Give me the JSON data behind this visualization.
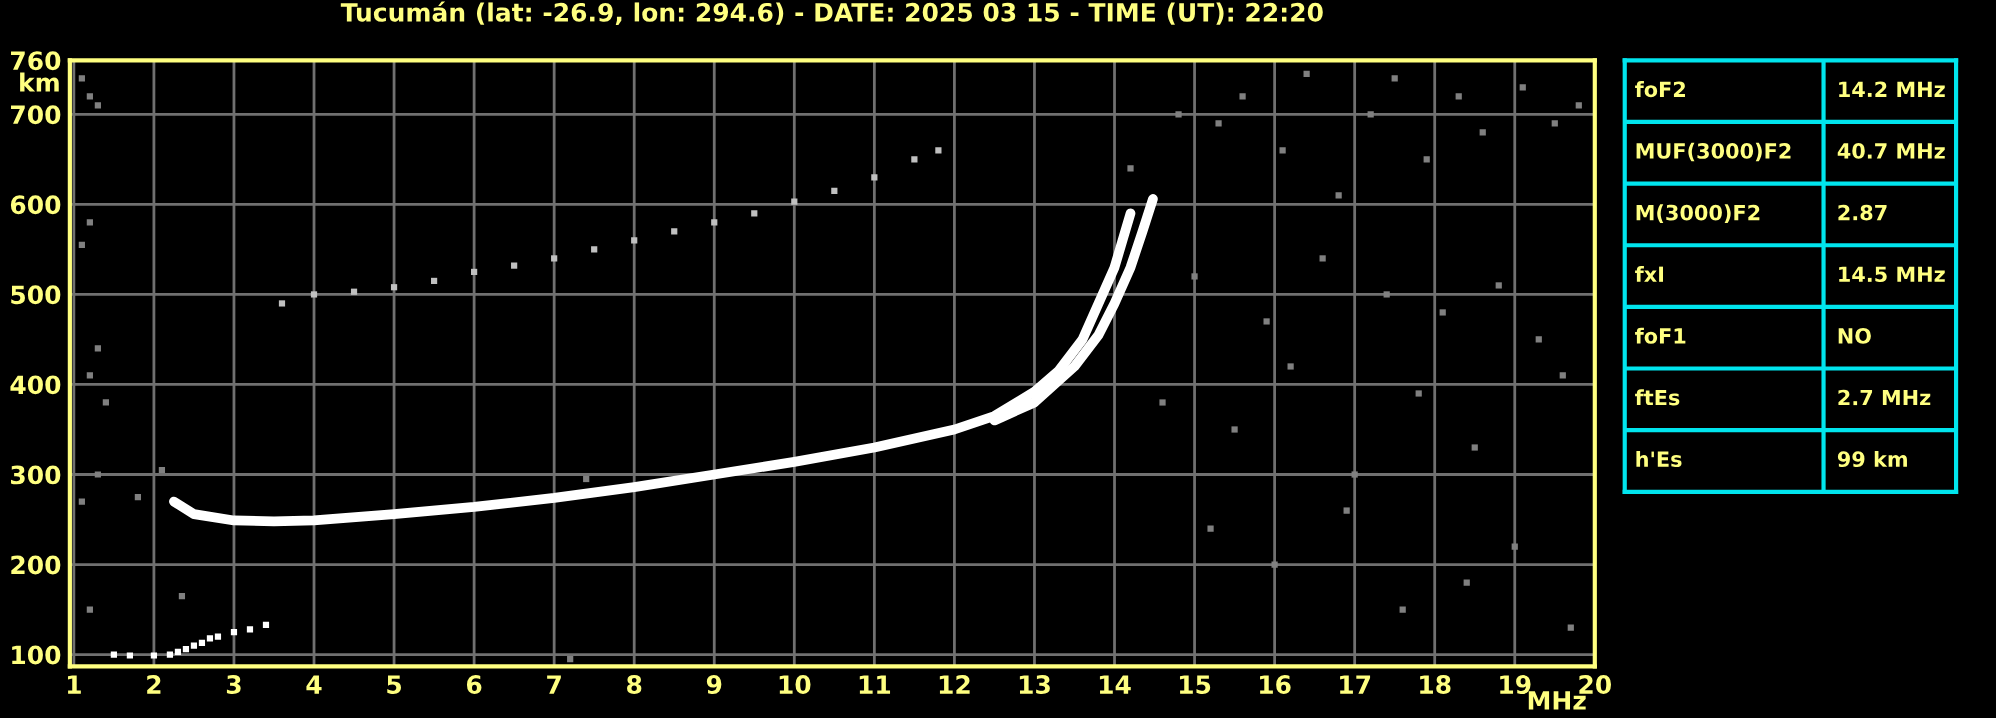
{
  "chart_data": [
    {
      "type": "scatter",
      "title": "Tucumán (lat: -26.9, lon: 294.6) - DATE: 2025 03 15 - TIME (UT): 22:20",
      "xlabel": "MHz",
      "ylabel": "km",
      "xlim": [
        0.95,
        20
      ],
      "ylim": [
        87,
        760
      ],
      "xticks": [
        1,
        2,
        3,
        4,
        5,
        6,
        7,
        8,
        9,
        10,
        11,
        12,
        13,
        14,
        15,
        16,
        17,
        18,
        19,
        20
      ],
      "yticks": [
        100,
        200,
        300,
        400,
        500,
        600,
        700,
        760
      ],
      "grid": true,
      "marker": "square",
      "series": [
        {
          "type": "line",
          "marker": "none",
          "color": "#ffffff",
          "x": [
            2.25,
            2.5,
            3,
            3.5,
            4,
            5,
            6,
            7,
            8,
            9,
            10,
            11,
            12,
            12.5,
            13,
            13.3,
            13.6,
            13.8,
            14.0,
            14.1,
            14.2
          ],
          "values": [
            270,
            256,
            249,
            248,
            249,
            256,
            264,
            274,
            286,
            300,
            314,
            330,
            350,
            365,
            392,
            415,
            450,
            490,
            530,
            560,
            590
          ]
        },
        {
          "type": "line",
          "marker": "none",
          "color": "#ffffff",
          "x": [
            12.5,
            13,
            13.5,
            13.8,
            14.0,
            14.2,
            14.35,
            14.48
          ],
          "values": [
            360,
            380,
            420,
            455,
            490,
            530,
            570,
            606
          ]
        },
        {
          "type": "scatter",
          "color": "#c0c0c0",
          "x": [
            3.6,
            4,
            4.5,
            5,
            5.5,
            6,
            6.5,
            7,
            7.5,
            8,
            8.5,
            9,
            9.5,
            10,
            10.5,
            11,
            11.5,
            11.8
          ],
          "values": [
            490,
            500,
            503,
            508,
            515,
            525,
            532,
            540,
            550,
            560,
            570,
            580,
            590,
            603,
            615,
            630,
            650,
            660
          ]
        },
        {
          "type": "scatter",
          "color": "#ffffff",
          "x": [
            1.5,
            1.7,
            2,
            2.2,
            2.3,
            2.4,
            2.5,
            2.6,
            2.7,
            2.8,
            3,
            3.2,
            3.4
          ],
          "values": [
            100,
            99,
            99,
            100,
            103,
            106,
            110,
            113,
            118,
            120,
            125,
            128,
            133
          ]
        },
        {
          "type": "scatter",
          "color": "#808080",
          "x": [
            1.1,
            1.2,
            1.3,
            1.2,
            1.1,
            1.3,
            1.2,
            1.4,
            1.3,
            1.1,
            1.2,
            1.8,
            2.1,
            2.35,
            7.2,
            7.4,
            14.2,
            14.8,
            15.3,
            15.6,
            16.1,
            16.4,
            16.8,
            17.2,
            17.5,
            17.9,
            18.3,
            18.6,
            19.1,
            19.5,
            19.8,
            15.0,
            15.9,
            16.6,
            17.4,
            18.1,
            18.8,
            19.3,
            14.6,
            15.5,
            16.2,
            17.0,
            17.8,
            18.5,
            19.6,
            15.2,
            16.0,
            16.9,
            17.6,
            18.4,
            19.0,
            19.7
          ],
          "values": [
            740,
            720,
            710,
            580,
            555,
            440,
            410,
            380,
            300,
            270,
            150,
            275,
            305,
            165,
            95,
            295,
            640,
            700,
            690,
            720,
            660,
            745,
            610,
            700,
            740,
            650,
            720,
            680,
            730,
            690,
            710,
            520,
            470,
            540,
            500,
            480,
            510,
            450,
            380,
            350,
            420,
            300,
            390,
            330,
            410,
            240,
            200,
            260,
            150,
            180,
            220,
            130
          ]
        }
      ]
    },
    {
      "type": "other",
      "y_categories": [
        "foF2",
        "MUF(3000)F2",
        "M(3000)F2",
        "fxI",
        "foF1",
        "ftEs",
        "h'Es"
      ],
      "cell_labels": [
        [
          "14.2 MHz"
        ],
        [
          "40.7 MHz"
        ],
        [
          "2.87"
        ],
        [
          "14.5 MHz"
        ],
        [
          "NO"
        ],
        [
          "2.7 MHz"
        ],
        [
          "99 km"
        ]
      ]
    }
  ]
}
